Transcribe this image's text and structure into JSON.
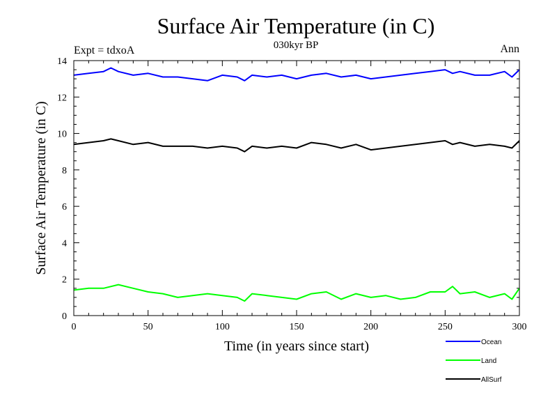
{
  "chart_data": {
    "type": "line",
    "title": "Surface Air Temperature (in C)",
    "subtitle": "030kyr BP",
    "annotation_left": "Expt = tdxoA",
    "annotation_right": "Ann",
    "xlabel": "Time (in years since start)",
    "ylabel": "Surface Air Temperature (in C)",
    "xlim": [
      0,
      300
    ],
    "ylim": [
      0,
      14
    ],
    "x_ticks": [
      0,
      50,
      100,
      150,
      200,
      250,
      300
    ],
    "y_ticks": [
      0,
      2,
      4,
      6,
      8,
      10,
      12,
      14
    ],
    "x_minor_step": 10,
    "y_minor_step": 0.5,
    "grid": false,
    "legend_position": "bottom-right, below plot",
    "series": [
      {
        "name": "Ocean",
        "color": "#0000ff",
        "x": [
          0,
          10,
          20,
          25,
          30,
          40,
          50,
          60,
          70,
          80,
          90,
          100,
          110,
          115,
          120,
          130,
          140,
          150,
          160,
          170,
          180,
          190,
          200,
          210,
          220,
          230,
          240,
          250,
          255,
          260,
          270,
          280,
          290,
          295,
          300
        ],
        "values": [
          13.2,
          13.3,
          13.4,
          13.6,
          13.4,
          13.2,
          13.3,
          13.1,
          13.1,
          13.0,
          12.9,
          13.2,
          13.1,
          12.9,
          13.2,
          13.1,
          13.2,
          13.0,
          13.2,
          13.3,
          13.1,
          13.2,
          13.0,
          13.1,
          13.2,
          13.3,
          13.4,
          13.5,
          13.3,
          13.4,
          13.2,
          13.2,
          13.4,
          13.1,
          13.5
        ]
      },
      {
        "name": "Land",
        "color": "#00ff00",
        "x": [
          0,
          10,
          20,
          30,
          40,
          50,
          60,
          70,
          80,
          90,
          100,
          110,
          115,
          120,
          130,
          140,
          150,
          160,
          170,
          180,
          190,
          200,
          210,
          220,
          230,
          240,
          250,
          255,
          260,
          270,
          280,
          290,
          295,
          300
        ],
        "values": [
          1.4,
          1.5,
          1.5,
          1.7,
          1.5,
          1.3,
          1.2,
          1.0,
          1.1,
          1.2,
          1.1,
          1.0,
          0.8,
          1.2,
          1.1,
          1.0,
          0.9,
          1.2,
          1.3,
          0.9,
          1.2,
          1.0,
          1.1,
          0.9,
          1.0,
          1.3,
          1.3,
          1.6,
          1.2,
          1.3,
          1.0,
          1.2,
          0.9,
          1.5
        ]
      },
      {
        "name": "AllSurf",
        "color": "#000000",
        "x": [
          0,
          10,
          20,
          25,
          30,
          40,
          50,
          60,
          70,
          80,
          90,
          100,
          110,
          115,
          120,
          130,
          140,
          150,
          160,
          170,
          180,
          190,
          200,
          210,
          220,
          230,
          240,
          250,
          255,
          260,
          270,
          280,
          290,
          295,
          300
        ],
        "values": [
          9.4,
          9.5,
          9.6,
          9.7,
          9.6,
          9.4,
          9.5,
          9.3,
          9.3,
          9.3,
          9.2,
          9.3,
          9.2,
          9.0,
          9.3,
          9.2,
          9.3,
          9.2,
          9.5,
          9.4,
          9.2,
          9.4,
          9.1,
          9.2,
          9.3,
          9.4,
          9.5,
          9.6,
          9.4,
          9.5,
          9.3,
          9.4,
          9.3,
          9.2,
          9.6
        ]
      }
    ]
  }
}
